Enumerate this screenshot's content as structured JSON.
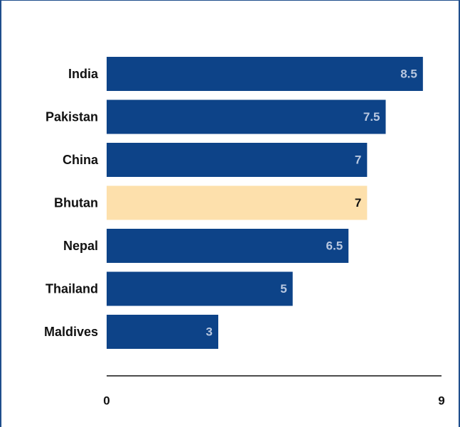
{
  "chart_data": {
    "type": "bar",
    "orientation": "horizontal",
    "categories": [
      "India",
      "Pakistan",
      "China",
      "Bhutan",
      "Nepal",
      "Thailand",
      "Maldives"
    ],
    "values": [
      8.5,
      7.5,
      7,
      7,
      6.5,
      5,
      3
    ],
    "value_labels": [
      "8.5",
      "7.5",
      "7",
      "7",
      "6.5",
      "5",
      "3"
    ],
    "highlight": "Bhutan",
    "xlim": [
      0,
      9
    ],
    "x_ticks": [
      "0",
      "9"
    ],
    "title": "",
    "xlabel": "",
    "ylabel": "",
    "grid": false,
    "colors": {
      "bar": "#0d4388",
      "highlight_bar": "#fde0ac",
      "value_label": "#b9c8e0",
      "highlight_value_label": "#111111",
      "axis": "#111111",
      "frame": "#1f4e8c"
    }
  }
}
